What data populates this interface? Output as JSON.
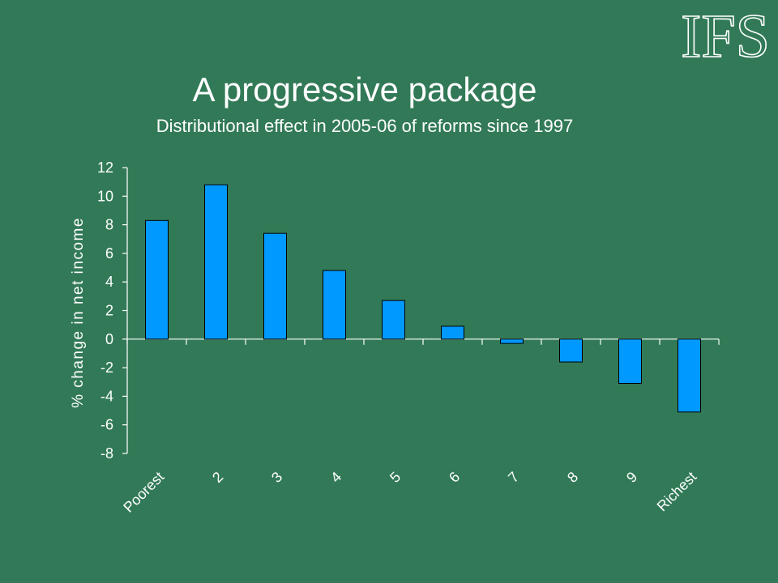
{
  "logo": {
    "text": "IFS"
  },
  "header": {
    "title": "A progressive package",
    "subtitle": "Distributional effect in 2005-06 of reforms since 1997"
  },
  "colors": {
    "background": "#327A57",
    "bar": "#0099FF",
    "axis": "#ffffff",
    "text": "#ffffff"
  },
  "chart_data": {
    "type": "bar",
    "title": "",
    "xlabel": "",
    "ylabel": "% change in net income",
    "categories": [
      "Poorest",
      "2",
      "3",
      "4",
      "5",
      "6",
      "7",
      "8",
      "9",
      "Richest"
    ],
    "values": [
      8.3,
      10.8,
      7.4,
      4.8,
      2.7,
      0.9,
      -0.3,
      -1.6,
      -3.1,
      -5.1
    ],
    "ylim": [
      -8,
      12
    ],
    "yticks": [
      "-8",
      "-6",
      "-4",
      "-2",
      "0",
      "2",
      "4",
      "6",
      "8",
      "10",
      "12"
    ],
    "grid": false,
    "legend": "none"
  }
}
